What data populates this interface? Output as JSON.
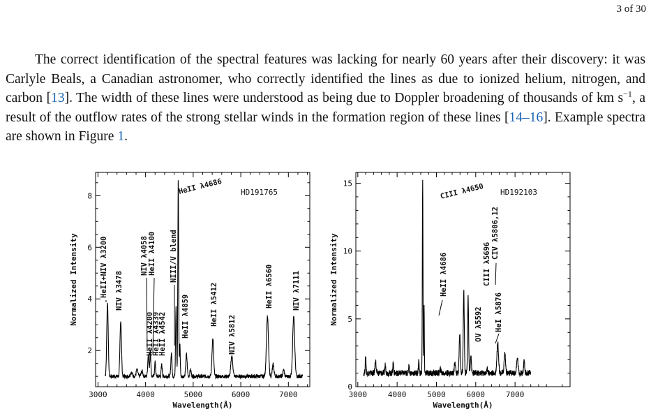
{
  "header": {
    "page_number": "3 of 30"
  },
  "paragraph": {
    "part1": "The correct identification of the spectral features was lacking for nearly 60 years after their discovery: it was Carlyle Beals, a Canadian astronomer, who correctly identified the lines as due to ionized helium, nitrogen, and carbon [",
    "ref1": "13",
    "part2": "]. The width of these lines were understood as being due to Doppler broadening of thousands of km s",
    "sup": "−1",
    "part3": ", a result of the outflow rates of the strong stellar winds in the formation region of these lines [",
    "ref2": "14",
    "dash": "–",
    "ref3": "16",
    "part4": "]. Example spectra are shown in Figure ",
    "fig_ref": "1",
    "part5": "."
  },
  "chart_data": [
    {
      "type": "line",
      "title": "HD191765",
      "xlabel": "Wavelength(Å)",
      "ylabel": "Normalized Intensity",
      "xlim": [
        2950,
        7450
      ],
      "ylim": [
        0.6,
        8.9
      ],
      "xticks": [
        3000,
        4000,
        5000,
        6000,
        7000
      ],
      "yticks": [
        2,
        4,
        6,
        8
      ],
      "baseline": 1.0,
      "peaks": [
        {
          "x": 3200,
          "y": 3.85,
          "w": 22
        },
        {
          "x": 3478,
          "y": 3.15,
          "w": 22
        },
        {
          "x": 3700,
          "y": 1.15,
          "w": 30
        },
        {
          "x": 3820,
          "y": 1.25,
          "w": 25
        },
        {
          "x": 3925,
          "y": 1.2,
          "w": 25
        },
        {
          "x": 4058,
          "y": 1.85,
          "w": 18
        },
        {
          "x": 4100,
          "y": 2.05,
          "w": 14
        },
        {
          "x": 4200,
          "y": 1.55,
          "w": 15
        },
        {
          "x": 4339,
          "y": 1.45,
          "w": 15
        },
        {
          "x": 4542,
          "y": 1.9,
          "w": 16
        },
        {
          "x": 4640,
          "y": 3.8,
          "w": 14
        },
        {
          "x": 4686,
          "y": 8.6,
          "w": 12
        },
        {
          "x": 4720,
          "y": 2.3,
          "w": 12
        },
        {
          "x": 4859,
          "y": 1.85,
          "w": 20
        },
        {
          "x": 4945,
          "y": 1.25,
          "w": 20
        },
        {
          "x": 5412,
          "y": 2.45,
          "w": 24
        },
        {
          "x": 5812,
          "y": 1.8,
          "w": 28
        },
        {
          "x": 6560,
          "y": 3.3,
          "w": 30
        },
        {
          "x": 6680,
          "y": 1.45,
          "w": 25
        },
        {
          "x": 6900,
          "y": 1.25,
          "w": 20
        },
        {
          "x": 7111,
          "y": 3.3,
          "w": 30
        }
      ],
      "annotations": [
        {
          "text": "HeII+NIV λ3200",
          "x": 3200
        },
        {
          "text": "NIV λ3478",
          "x": 3478
        },
        {
          "text": "NIV λ4058",
          "x": 4040
        },
        {
          "text": "HeII λ4100",
          "x": 4130
        },
        {
          "text": "HeII λ4200",
          "x": 4200
        },
        {
          "text": "HeII λ4339",
          "x": 4339
        },
        {
          "text": "HeII λ4542",
          "x": 4480
        },
        {
          "text": "NIII/V blend",
          "x": 4590
        },
        {
          "text": "HeII λ4686",
          "x": 4700
        },
        {
          "text": "HeII λ4859",
          "x": 4859
        },
        {
          "text": "HeII λ5412",
          "x": 5412
        },
        {
          "text": "NIV λ5812",
          "x": 5812
        },
        {
          "text": "HeII λ6560",
          "x": 6560
        },
        {
          "text": "NIV λ7111",
          "x": 7111
        }
      ]
    },
    {
      "type": "line",
      "title": "HD192103",
      "xlabel": "Wavelength(Å)",
      "ylabel": "Normalized Intensity",
      "xlim": [
        2950,
        8400
      ],
      "ylim": [
        0,
        15.8
      ],
      "xticks": [
        3000,
        4000,
        5000,
        6000,
        7000
      ],
      "yticks": [
        0,
        5,
        10,
        15
      ],
      "baseline": 1.0,
      "peaks": [
        {
          "x": 3200,
          "y": 2.2,
          "w": 15
        },
        {
          "x": 3450,
          "y": 2.0,
          "w": 18
        },
        {
          "x": 3700,
          "y": 1.6,
          "w": 18
        },
        {
          "x": 3900,
          "y": 1.8,
          "w": 15
        },
        {
          "x": 4300,
          "y": 1.6,
          "w": 15
        },
        {
          "x": 4550,
          "y": 1.9,
          "w": 14
        },
        {
          "x": 4650,
          "y": 15.2,
          "w": 12
        },
        {
          "x": 4686,
          "y": 5.8,
          "w": 10
        },
        {
          "x": 5100,
          "y": 1.3,
          "w": 20
        },
        {
          "x": 5470,
          "y": 1.9,
          "w": 20
        },
        {
          "x": 5592,
          "y": 3.9,
          "w": 20
        },
        {
          "x": 5696,
          "y": 7.1,
          "w": 18
        },
        {
          "x": 5806,
          "y": 6.7,
          "w": 18
        },
        {
          "x": 5876,
          "y": 2.4,
          "w": 18
        },
        {
          "x": 6300,
          "y": 1.3,
          "w": 20
        },
        {
          "x": 6560,
          "y": 3.2,
          "w": 30
        },
        {
          "x": 6740,
          "y": 2.5,
          "w": 25
        },
        {
          "x": 7060,
          "y": 2.1,
          "w": 25
        },
        {
          "x": 7230,
          "y": 1.8,
          "w": 20
        }
      ],
      "annotations": [
        {
          "text": "CIII λ4650",
          "x": 4650
        },
        {
          "text": "HeII λ4686",
          "x": 4686
        },
        {
          "text": "OV λ5592",
          "x": 5592
        },
        {
          "text": "CIII λ5696",
          "x": 5696
        },
        {
          "text": "CIV λ5806,12",
          "x": 5806
        },
        {
          "text": "HeI λ5876",
          "x": 5876
        }
      ]
    }
  ]
}
